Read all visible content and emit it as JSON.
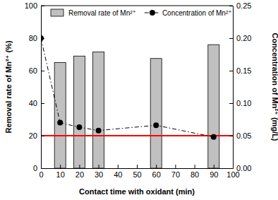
{
  "chart_data": {
    "type": "bar_line",
    "xlabel": "Contact time with oxidant (min)",
    "ylabel": "Removal rate of Mn²⁺ (%)",
    "y2label": "Concentration of Mn²⁺ (mg/L)",
    "xlim": [
      0,
      100
    ],
    "xticks": [
      0,
      10,
      20,
      30,
      40,
      50,
      60,
      70,
      80,
      90,
      100
    ],
    "ylim": [
      0,
      100
    ],
    "yticks": [
      0,
      20,
      40,
      60,
      80,
      100
    ],
    "y2lim": [
      0,
      0.25
    ],
    "y2ticks": [
      {
        "value": 0,
        "label": "0.00"
      },
      0.05,
      {
        "value": 0.1,
        "label": "0.10"
      },
      0.15,
      {
        "value": 0.2,
        "label": "0.20"
      },
      0.25
    ],
    "legend": "top",
    "series": [
      {
        "name": "Removal rate of Mn²⁺",
        "type": "bar",
        "color": "#c0c0c0",
        "x": [
          10,
          20,
          30,
          60,
          90
        ],
        "values": [
          65,
          69,
          71.5,
          67.5,
          76
        ]
      },
      {
        "name": "Concentration of Mn²⁺",
        "type": "line",
        "axis": "y2",
        "color": "#000000",
        "marker": "circle",
        "line_style": "dash-dot",
        "x": [
          0,
          10,
          20,
          30,
          60,
          90
        ],
        "values": [
          0.2,
          0.07,
          0.063,
          0.058,
          0.066,
          0.048
        ]
      }
    ],
    "threshold": {
      "value": 0.05,
      "axis": "y2",
      "color": "#ff0000"
    }
  }
}
